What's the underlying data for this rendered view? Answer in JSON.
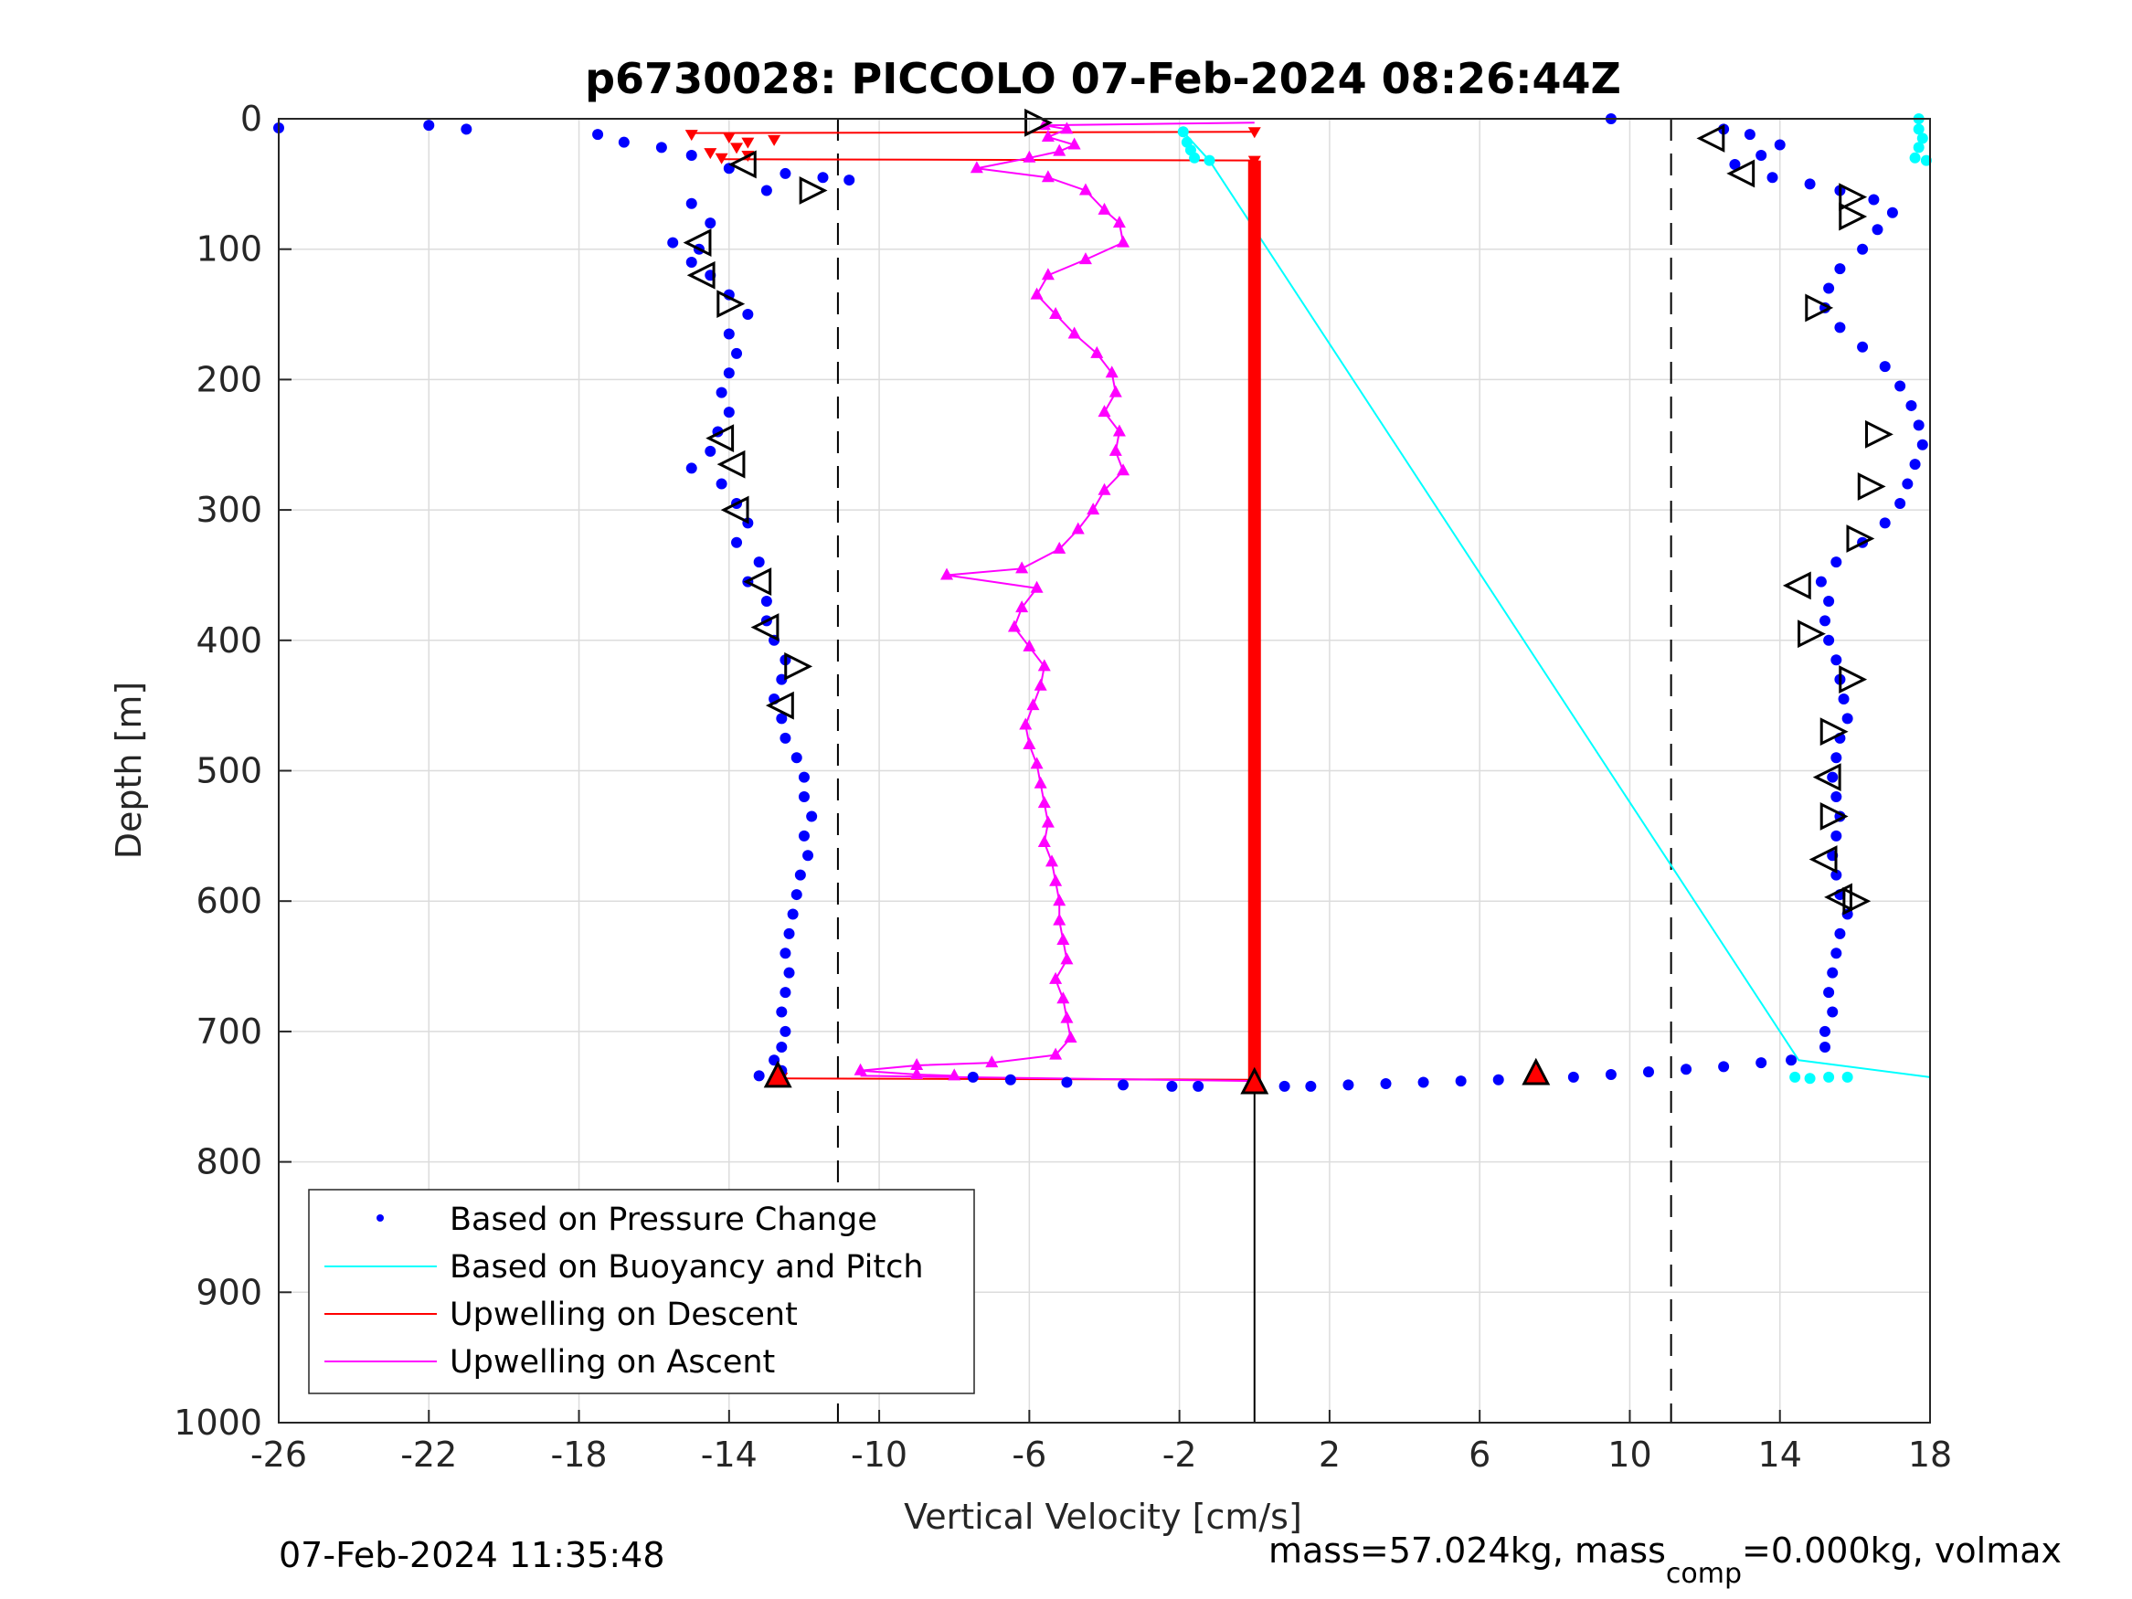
{
  "chart_data": {
    "type": "scatter",
    "title": "p6730028: PICCOLO 07-Feb-2024 08:26:44Z",
    "xlabel": "Vertical Velocity [cm/s]",
    "ylabel": "Depth [m]",
    "xlim": [
      -26,
      18
    ],
    "ylim": [
      0,
      1000
    ],
    "y_reversed": true,
    "grid": true,
    "xticks": [
      -26,
      -22,
      -18,
      -14,
      -10,
      -6,
      -2,
      2,
      6,
      10,
      14,
      18
    ],
    "xtick_labels": [
      "-26",
      "-22",
      "-18",
      "-14",
      "-10",
      "-6",
      "-2",
      "2",
      "6",
      "10",
      "14",
      "18"
    ],
    "yticks": [
      0,
      100,
      200,
      300,
      400,
      500,
      600,
      700,
      800,
      900,
      1000
    ],
    "ytick_labels": [
      "0",
      "100",
      "200",
      "300",
      "400",
      "500",
      "600",
      "700",
      "800",
      "900",
      "1000"
    ],
    "legend_position": "bottom-left",
    "legend": [
      {
        "label": "Based on Pressure Change",
        "style": "dot",
        "color": "#0000ff"
      },
      {
        "label": "Based on Buoyancy and Pitch",
        "style": "line",
        "color": "#00ffff"
      },
      {
        "label": "Upwelling on Descent",
        "style": "line",
        "color": "#ff0000"
      },
      {
        "label": "Upwelling on Ascent",
        "style": "line",
        "color": "#ff00ff"
      }
    ],
    "reference_lines": [
      {
        "x": -11.1,
        "style": "dashed",
        "color": "#000000"
      },
      {
        "x": 11.1,
        "style": "dashed",
        "color": "#000000"
      },
      {
        "x": 0,
        "style": "solid",
        "color": "#000000",
        "depth_from": 735,
        "depth_to": 1000
      }
    ],
    "series": [
      {
        "name": "Pressure change (descent)",
        "color": "#0000ff",
        "points": [
          [
            -26,
            7
          ],
          [
            -22,
            5
          ],
          [
            -21,
            8
          ],
          [
            -17.5,
            12
          ],
          [
            -16.8,
            18
          ],
          [
            -15.8,
            22
          ],
          [
            -15,
            28
          ],
          [
            -14,
            38
          ],
          [
            -12.5,
            42
          ],
          [
            -11.5,
            45
          ],
          [
            -10.8,
            47
          ],
          [
            -13,
            55
          ],
          [
            -15,
            65
          ],
          [
            -14.5,
            80
          ],
          [
            -15.5,
            95
          ],
          [
            -14.8,
            100
          ],
          [
            -15,
            110
          ],
          [
            -14.5,
            120
          ],
          [
            -14,
            135
          ],
          [
            -13.5,
            150
          ],
          [
            -14,
            165
          ],
          [
            -13.8,
            180
          ],
          [
            -14,
            195
          ],
          [
            -14.2,
            210
          ],
          [
            -14,
            225
          ],
          [
            -14.3,
            240
          ],
          [
            -14.5,
            255
          ],
          [
            -15,
            268
          ],
          [
            -14.2,
            280
          ],
          [
            -13.8,
            295
          ],
          [
            -13.5,
            310
          ],
          [
            -13.8,
            325
          ],
          [
            -13.2,
            340
          ],
          [
            -13.5,
            355
          ],
          [
            -13,
            370
          ],
          [
            -13,
            385
          ],
          [
            -12.8,
            400
          ],
          [
            -12.5,
            415
          ],
          [
            -12.6,
            430
          ],
          [
            -12.8,
            445
          ],
          [
            -12.6,
            460
          ],
          [
            -12.5,
            475
          ],
          [
            -12.2,
            490
          ],
          [
            -12,
            505
          ],
          [
            -12,
            520
          ],
          [
            -11.8,
            535
          ],
          [
            -12,
            550
          ],
          [
            -11.9,
            565
          ],
          [
            -12.1,
            580
          ],
          [
            -12.2,
            595
          ],
          [
            -12.3,
            610
          ],
          [
            -12.4,
            625
          ],
          [
            -12.5,
            640
          ],
          [
            -12.4,
            655
          ],
          [
            -12.5,
            670
          ],
          [
            -12.6,
            685
          ],
          [
            -12.5,
            700
          ],
          [
            -12.6,
            712
          ],
          [
            -12.8,
            722
          ],
          [
            -12.6,
            730
          ],
          [
            -13.2,
            734
          ]
        ]
      },
      {
        "name": "Pressure change (bottom turn)",
        "color": "#0000ff",
        "points": [
          [
            -7.5,
            735
          ],
          [
            -6.5,
            737
          ],
          [
            -5,
            739
          ],
          [
            -3.5,
            741
          ],
          [
            -2.2,
            742
          ],
          [
            -1.5,
            742
          ],
          [
            0.8,
            742
          ],
          [
            1.5,
            742
          ],
          [
            2.5,
            741
          ],
          [
            3.5,
            740
          ],
          [
            4.5,
            739
          ],
          [
            5.5,
            738
          ],
          [
            6.5,
            737
          ],
          [
            7.5,
            736
          ],
          [
            8.5,
            735
          ],
          [
            9.5,
            733
          ],
          [
            10.5,
            731
          ],
          [
            11.5,
            729
          ],
          [
            12.5,
            727
          ],
          [
            13.5,
            724
          ],
          [
            14.3,
            722
          ]
        ]
      },
      {
        "name": "Pressure change (ascent)",
        "color": "#0000ff",
        "points": [
          [
            15.2,
            712
          ],
          [
            15.2,
            700
          ],
          [
            15.4,
            685
          ],
          [
            15.3,
            670
          ],
          [
            15.4,
            655
          ],
          [
            15.5,
            640
          ],
          [
            15.6,
            625
          ],
          [
            15.8,
            610
          ],
          [
            15.6,
            595
          ],
          [
            15.5,
            580
          ],
          [
            15.4,
            565
          ],
          [
            15.5,
            550
          ],
          [
            15.6,
            535
          ],
          [
            15.5,
            520
          ],
          [
            15.4,
            505
          ],
          [
            15.5,
            490
          ],
          [
            15.6,
            475
          ],
          [
            15.8,
            460
          ],
          [
            15.7,
            445
          ],
          [
            15.6,
            430
          ],
          [
            15.5,
            415
          ],
          [
            15.3,
            400
          ],
          [
            15.2,
            385
          ],
          [
            15.3,
            370
          ],
          [
            15.1,
            355
          ],
          [
            15.5,
            340
          ],
          [
            16.2,
            325
          ],
          [
            16.8,
            310
          ],
          [
            17.2,
            295
          ],
          [
            17.4,
            280
          ],
          [
            17.6,
            265
          ],
          [
            17.8,
            250
          ],
          [
            17.7,
            235
          ],
          [
            17.5,
            220
          ],
          [
            17.2,
            205
          ],
          [
            16.8,
            190
          ],
          [
            16.2,
            175
          ],
          [
            15.6,
            160
          ],
          [
            15.2,
            145
          ],
          [
            15.3,
            130
          ],
          [
            15.6,
            115
          ],
          [
            16.2,
            100
          ],
          [
            16.6,
            85
          ],
          [
            17,
            72
          ],
          [
            16.5,
            62
          ],
          [
            15.6,
            55
          ],
          [
            14.8,
            50
          ],
          [
            13.8,
            45
          ],
          [
            12.8,
            35
          ],
          [
            13.5,
            28
          ],
          [
            14,
            20
          ],
          [
            13.2,
            12
          ],
          [
            12.5,
            8
          ],
          [
            9.5,
            0
          ]
        ]
      },
      {
        "name": "Buoyancy and pitch",
        "color": "#00ffff",
        "line": [
          [
            -1.9,
            10
          ],
          [
            -1.2,
            32
          ],
          [
            14.5,
            722
          ],
          [
            18,
            735
          ]
        ],
        "points": [
          [
            -1.9,
            10
          ],
          [
            -1.8,
            18
          ],
          [
            -1.7,
            24
          ],
          [
            -1.6,
            30
          ],
          [
            -1.2,
            32
          ],
          [
            14.4,
            735
          ],
          [
            14.8,
            736
          ],
          [
            15.3,
            735
          ],
          [
            15.8,
            735
          ],
          [
            17.7,
            0
          ],
          [
            17.7,
            8
          ],
          [
            17.8,
            15
          ],
          [
            17.7,
            22
          ],
          [
            17.6,
            30
          ],
          [
            17.9,
            32
          ]
        ]
      },
      {
        "name": "Upwelling on Descent",
        "color": "#ff0000",
        "points": [
          [
            -15,
            12
          ],
          [
            -14,
            14
          ],
          [
            -13.5,
            18
          ],
          [
            -12.8,
            16
          ],
          [
            -13.8,
            22
          ],
          [
            -14.5,
            26
          ],
          [
            -13.5,
            28
          ],
          [
            -14.2,
            30
          ],
          [
            0,
            10
          ],
          [
            0,
            32
          ],
          [
            0,
            735
          ],
          [
            -12.6,
            735
          ],
          [
            7.5,
            735
          ]
        ]
      },
      {
        "name": "Upwelling on Ascent",
        "color": "#ff00ff",
        "points": [
          [
            -5.6,
            5
          ],
          [
            -5,
            8
          ],
          [
            -5.5,
            14
          ],
          [
            -4.8,
            20
          ],
          [
            -5.2,
            25
          ],
          [
            -6,
            30
          ],
          [
            -7.4,
            38
          ],
          [
            -5.5,
            45
          ],
          [
            -4.5,
            55
          ],
          [
            -4,
            70
          ],
          [
            -3.6,
            80
          ],
          [
            -3.5,
            95
          ],
          [
            -4.5,
            108
          ],
          [
            -5.5,
            120
          ],
          [
            -5.8,
            135
          ],
          [
            -5.3,
            150
          ],
          [
            -4.8,
            165
          ],
          [
            -4.2,
            180
          ],
          [
            -3.8,
            195
          ],
          [
            -3.7,
            210
          ],
          [
            -4,
            225
          ],
          [
            -3.6,
            240
          ],
          [
            -3.7,
            255
          ],
          [
            -3.5,
            270
          ],
          [
            -4,
            285
          ],
          [
            -4.3,
            300
          ],
          [
            -4.7,
            315
          ],
          [
            -5.2,
            330
          ],
          [
            -6.2,
            345
          ],
          [
            -8.2,
            350
          ],
          [
            -5.8,
            360
          ],
          [
            -6.2,
            375
          ],
          [
            -6.4,
            390
          ],
          [
            -6,
            405
          ],
          [
            -5.6,
            420
          ],
          [
            -5.7,
            435
          ],
          [
            -5.9,
            450
          ],
          [
            -6.1,
            465
          ],
          [
            -6,
            480
          ],
          [
            -5.8,
            495
          ],
          [
            -5.7,
            510
          ],
          [
            -5.6,
            525
          ],
          [
            -5.5,
            540
          ],
          [
            -5.6,
            555
          ],
          [
            -5.4,
            570
          ],
          [
            -5.3,
            585
          ],
          [
            -5.2,
            600
          ],
          [
            -5.2,
            615
          ],
          [
            -5.1,
            630
          ],
          [
            -5,
            645
          ],
          [
            -5.3,
            660
          ],
          [
            -5.1,
            675
          ],
          [
            -5,
            690
          ],
          [
            -4.9,
            705
          ],
          [
            -5.3,
            718
          ],
          [
            -7,
            724
          ],
          [
            -9,
            726
          ],
          [
            -10.5,
            730
          ],
          [
            -9,
            733
          ],
          [
            -8,
            734
          ]
        ]
      }
    ],
    "markers": [
      {
        "name": "descent-triangles",
        "dir": "left",
        "points": [
          [
            -14.8,
            95
          ],
          [
            -14.7,
            120
          ],
          [
            -14.2,
            245
          ],
          [
            -13.9,
            265
          ],
          [
            -13.8,
            300
          ],
          [
            -13.2,
            355
          ],
          [
            -13,
            390
          ],
          [
            -12.6,
            450
          ],
          [
            -13.6,
            35
          ],
          [
            12.2,
            15
          ],
          [
            13,
            42
          ],
          [
            14.5,
            358
          ],
          [
            15.3,
            505
          ],
          [
            15.2,
            568
          ],
          [
            15.6,
            597
          ]
        ]
      },
      {
        "name": "ascent-triangles",
        "dir": "right",
        "points": [
          [
            -5.8,
            3
          ],
          [
            -11.8,
            55
          ],
          [
            -14,
            142
          ],
          [
            -12.2,
            420
          ],
          [
            15.9,
            60
          ],
          [
            15.9,
            75
          ],
          [
            15,
            145
          ],
          [
            16.6,
            242
          ],
          [
            16.4,
            282
          ],
          [
            16.1,
            322
          ],
          [
            14.8,
            395
          ],
          [
            15.9,
            430
          ],
          [
            15.4,
            470
          ],
          [
            15.4,
            535
          ],
          [
            16,
            600
          ]
        ]
      },
      {
        "name": "red-markers",
        "dir": "up",
        "color": "#ff0000",
        "points": [
          [
            -12.7,
            735
          ],
          [
            0,
            740
          ],
          [
            7.5,
            733
          ]
        ]
      }
    ],
    "footer_left": "07-Feb-2024 11:35:48",
    "footer_right_prefix": "mass=57.024kg, mass",
    "footer_right_sub": "comp",
    "footer_right_suffix": "=0.000kg, volmax"
  }
}
